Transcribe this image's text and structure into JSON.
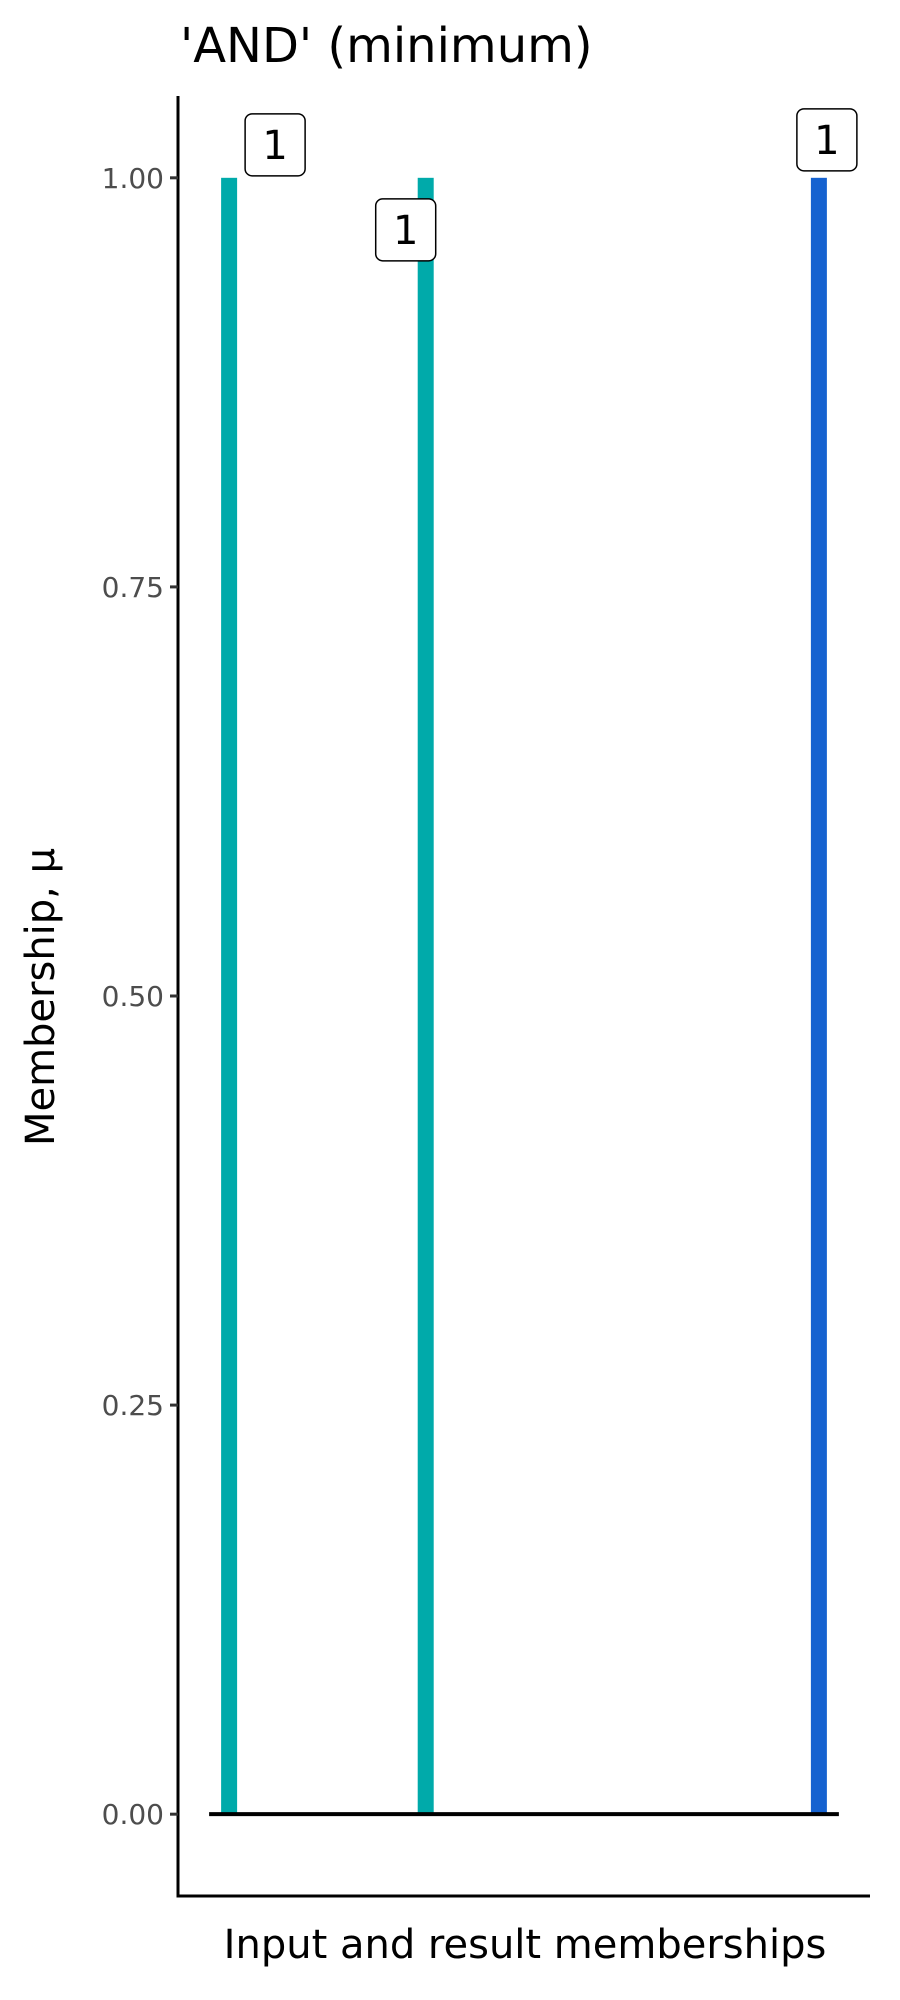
{
  "chart_data": {
    "type": "bar",
    "title": "'AND' (minimum)",
    "xlabel": "Input and result memberships",
    "ylabel": "Membership, μ",
    "ylim": [
      -0.05,
      1.05
    ],
    "xlim": [
      0.74,
      4.26
    ],
    "yticks": [
      0,
      0.25,
      0.5,
      0.75,
      1
    ],
    "ytick_labels": [
      "0.00",
      "0.25",
      "0.50",
      "0.75",
      "1.00"
    ],
    "grid": false,
    "bars": [
      {
        "x": 1,
        "value": 1,
        "label": "1",
        "color": "#00AAAA"
      },
      {
        "x": 2,
        "value": 1,
        "label": "1",
        "color": "#00AAAA"
      },
      {
        "x": 4,
        "value": 1,
        "label": "1",
        "color": "#1562D0"
      }
    ]
  }
}
